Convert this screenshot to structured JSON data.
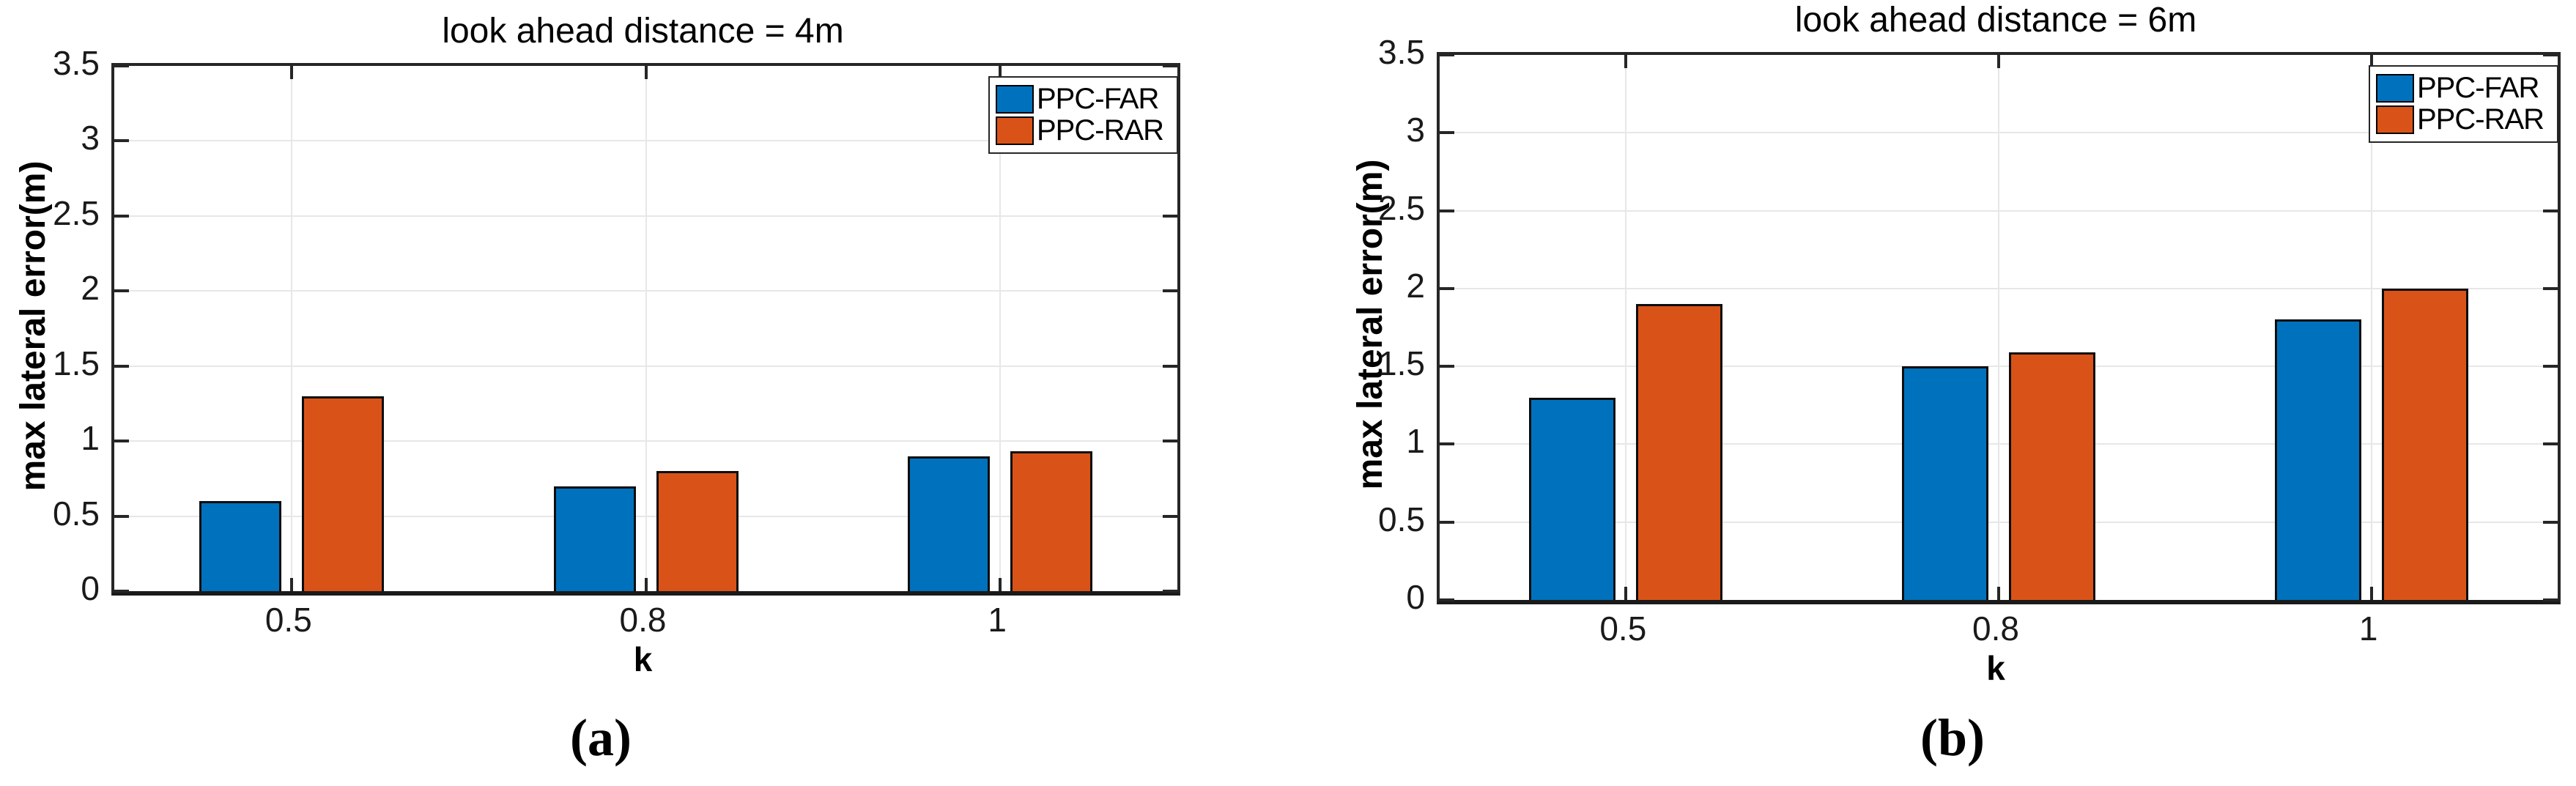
{
  "figure": {
    "background": "#ffffff",
    "caption_a": "(a)",
    "caption_b": "(b)"
  },
  "colors": {
    "ppc_far_blue": "#0072BD",
    "ppc_rar_orange": "#D95319",
    "bar_edge": "#0d0d0d",
    "axis": "#262626",
    "grid": "#e7e7e7",
    "text": "#000000"
  },
  "chart_data": [
    {
      "type": "bar",
      "title": "look ahead distance = 4m",
      "xlabel": "k",
      "ylabel": "max lateral error(m)",
      "categories": [
        "0.5",
        "0.8",
        "1"
      ],
      "series": [
        {
          "name": "PPC-FAR",
          "color": "#0072BD",
          "values": [
            0.6,
            0.7,
            0.9
          ]
        },
        {
          "name": "PPC-RAR",
          "color": "#D95319",
          "values": [
            1.3,
            0.8,
            0.93
          ]
        }
      ],
      "ylim": [
        0,
        3.5
      ],
      "yticks": [
        0,
        0.5,
        1,
        1.5,
        2,
        2.5,
        3,
        3.5
      ],
      "grid": true,
      "legend_position": "top-right",
      "caption": "(a)"
    },
    {
      "type": "bar",
      "title": "look ahead distance = 6m",
      "xlabel": "k",
      "ylabel": "max lateral error(m)",
      "categories": [
        "0.5",
        "0.8",
        "1"
      ],
      "series": [
        {
          "name": "PPC-FAR",
          "color": "#0072BD",
          "values": [
            1.3,
            1.5,
            1.8
          ]
        },
        {
          "name": "PPC-RAR",
          "color": "#D95319",
          "values": [
            1.9,
            1.59,
            2.0
          ]
        }
      ],
      "ylim": [
        0,
        3.5
      ],
      "yticks": [
        0,
        0.5,
        1,
        1.5,
        2,
        2.5,
        3,
        3.5
      ],
      "grid": true,
      "legend_position": "top-right",
      "caption": "(b)"
    }
  ]
}
